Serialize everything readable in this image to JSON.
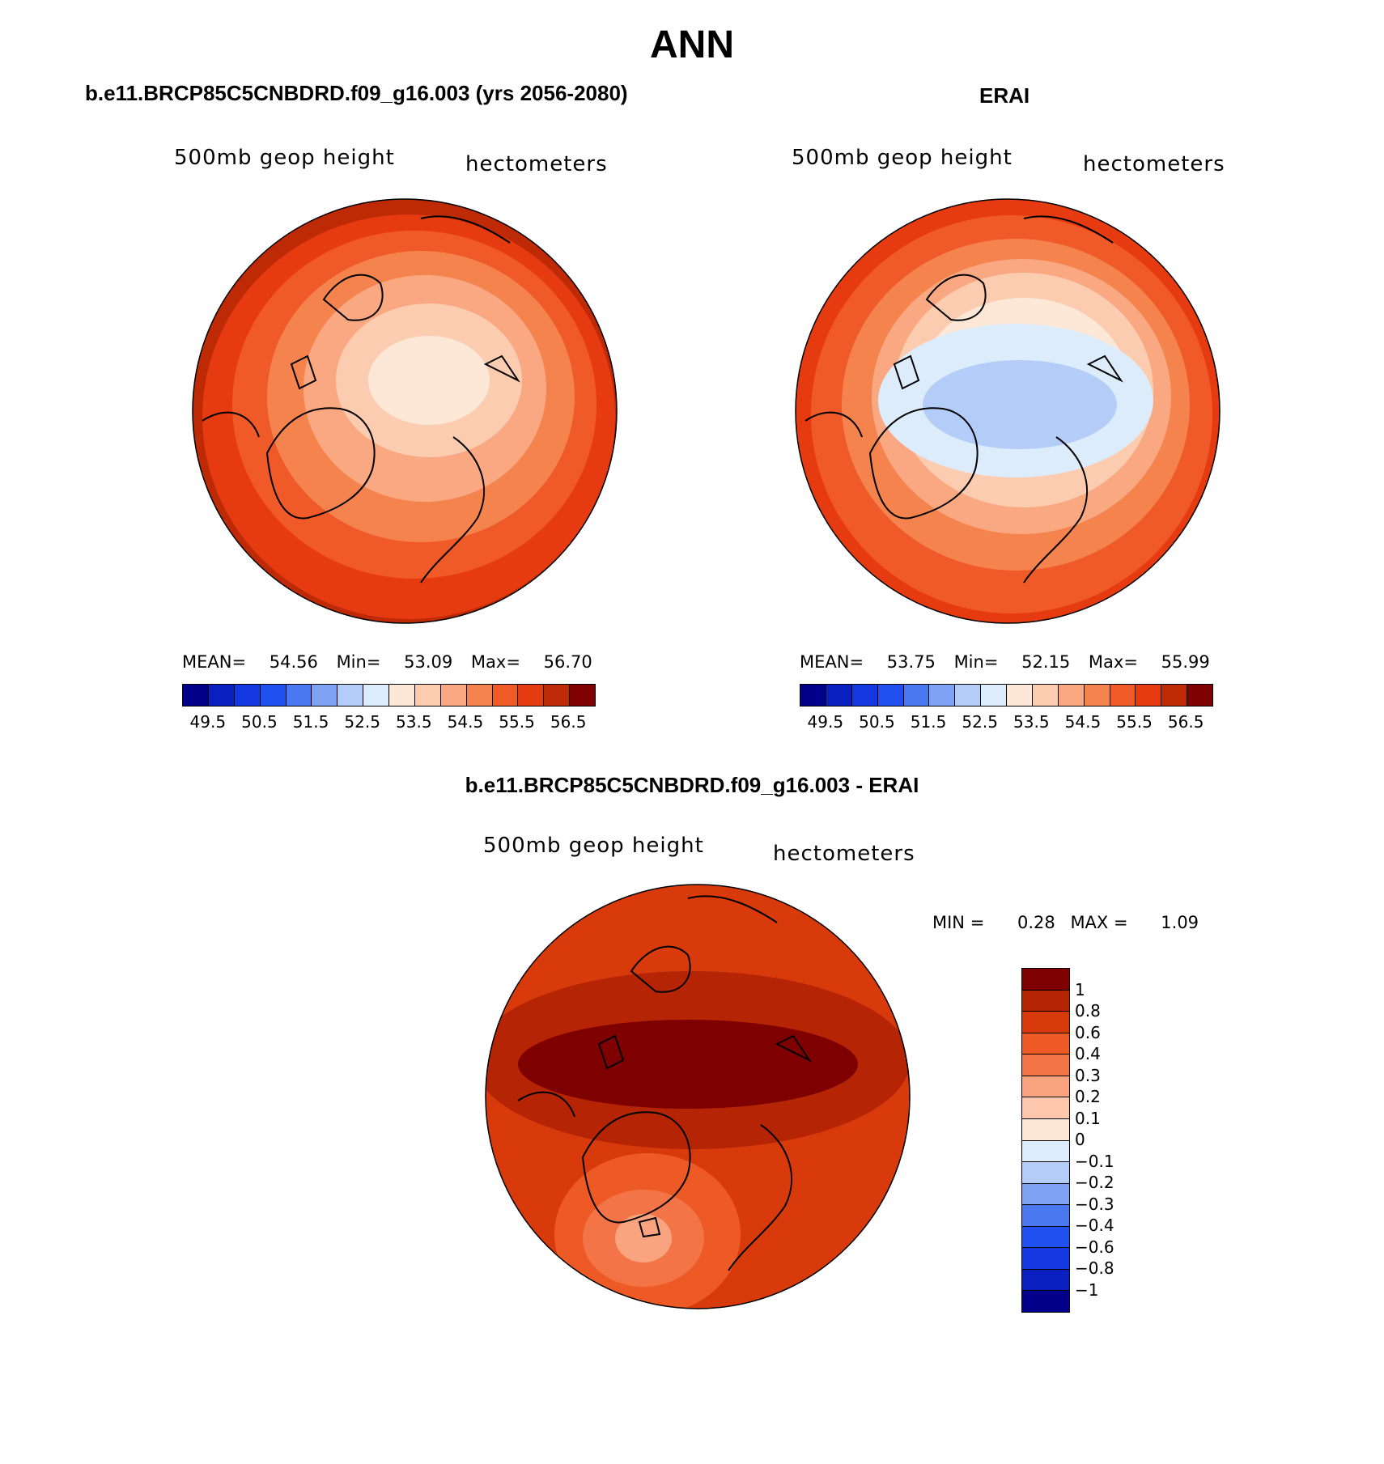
{
  "title": "ANN",
  "panels": {
    "model": {
      "title": "b.e11.BRCP85C5CNBDRD.f09_g16.003 (yrs 2056-2080)",
      "left_label": "500mb geop height",
      "right_label": "hectometers",
      "stats": {
        "mean_label": "MEAN=",
        "mean": "54.56",
        "min_label": "Min=",
        "min": "53.09",
        "max_label": "Max=",
        "max": "56.70"
      }
    },
    "obs": {
      "title": "ERAI",
      "left_label": "500mb geop height",
      "right_label": "hectometers",
      "stats": {
        "mean_label": "MEAN=",
        "mean": "53.75",
        "min_label": "Min=",
        "min": "52.15",
        "max_label": "Max=",
        "max": "55.99"
      }
    },
    "diff": {
      "title": "b.e11.BRCP85C5CNBDRD.f09_g16.003 - ERAI",
      "left_label": "500mb geop height",
      "right_label": "hectometers",
      "stats": {
        "min_label": "MIN =",
        "min": "0.28",
        "max_label": "MAX =",
        "max": "1.09"
      }
    }
  },
  "colorbars": {
    "absolute": {
      "colors": [
        "#00008b",
        "#0a1fc0",
        "#1438e0",
        "#2050f0",
        "#4a78f0",
        "#7ea2f4",
        "#b4cdf8",
        "#dcecfb",
        "#fde8d8",
        "#fcccb0",
        "#f9a882",
        "#f5834e",
        "#ef5a28",
        "#e63b10",
        "#bf2a06",
        "#7f0000"
      ],
      "tick_labels": [
        "49.5",
        "50.5",
        "51.5",
        "52.5",
        "53.5",
        "54.5",
        "55.5",
        "56.5"
      ]
    },
    "difference": {
      "colors": [
        "#7f0000",
        "#b52405",
        "#d83a0c",
        "#ee5a25",
        "#f37446",
        "#f9a37f",
        "#fcc7ac",
        "#fde8d8",
        "#dcecfb",
        "#b4cdf8",
        "#7ea2f4",
        "#4a78f0",
        "#2050f0",
        "#1438e0",
        "#0a1fc0",
        "#00008b"
      ],
      "tick_labels": [
        "1",
        "0.8",
        "0.6",
        "0.4",
        "0.3",
        "0.2",
        "0.1",
        "0",
        "−0.1",
        "−0.2",
        "−0.3",
        "−0.4",
        "−0.6",
        "−0.8",
        "−1"
      ]
    }
  }
}
